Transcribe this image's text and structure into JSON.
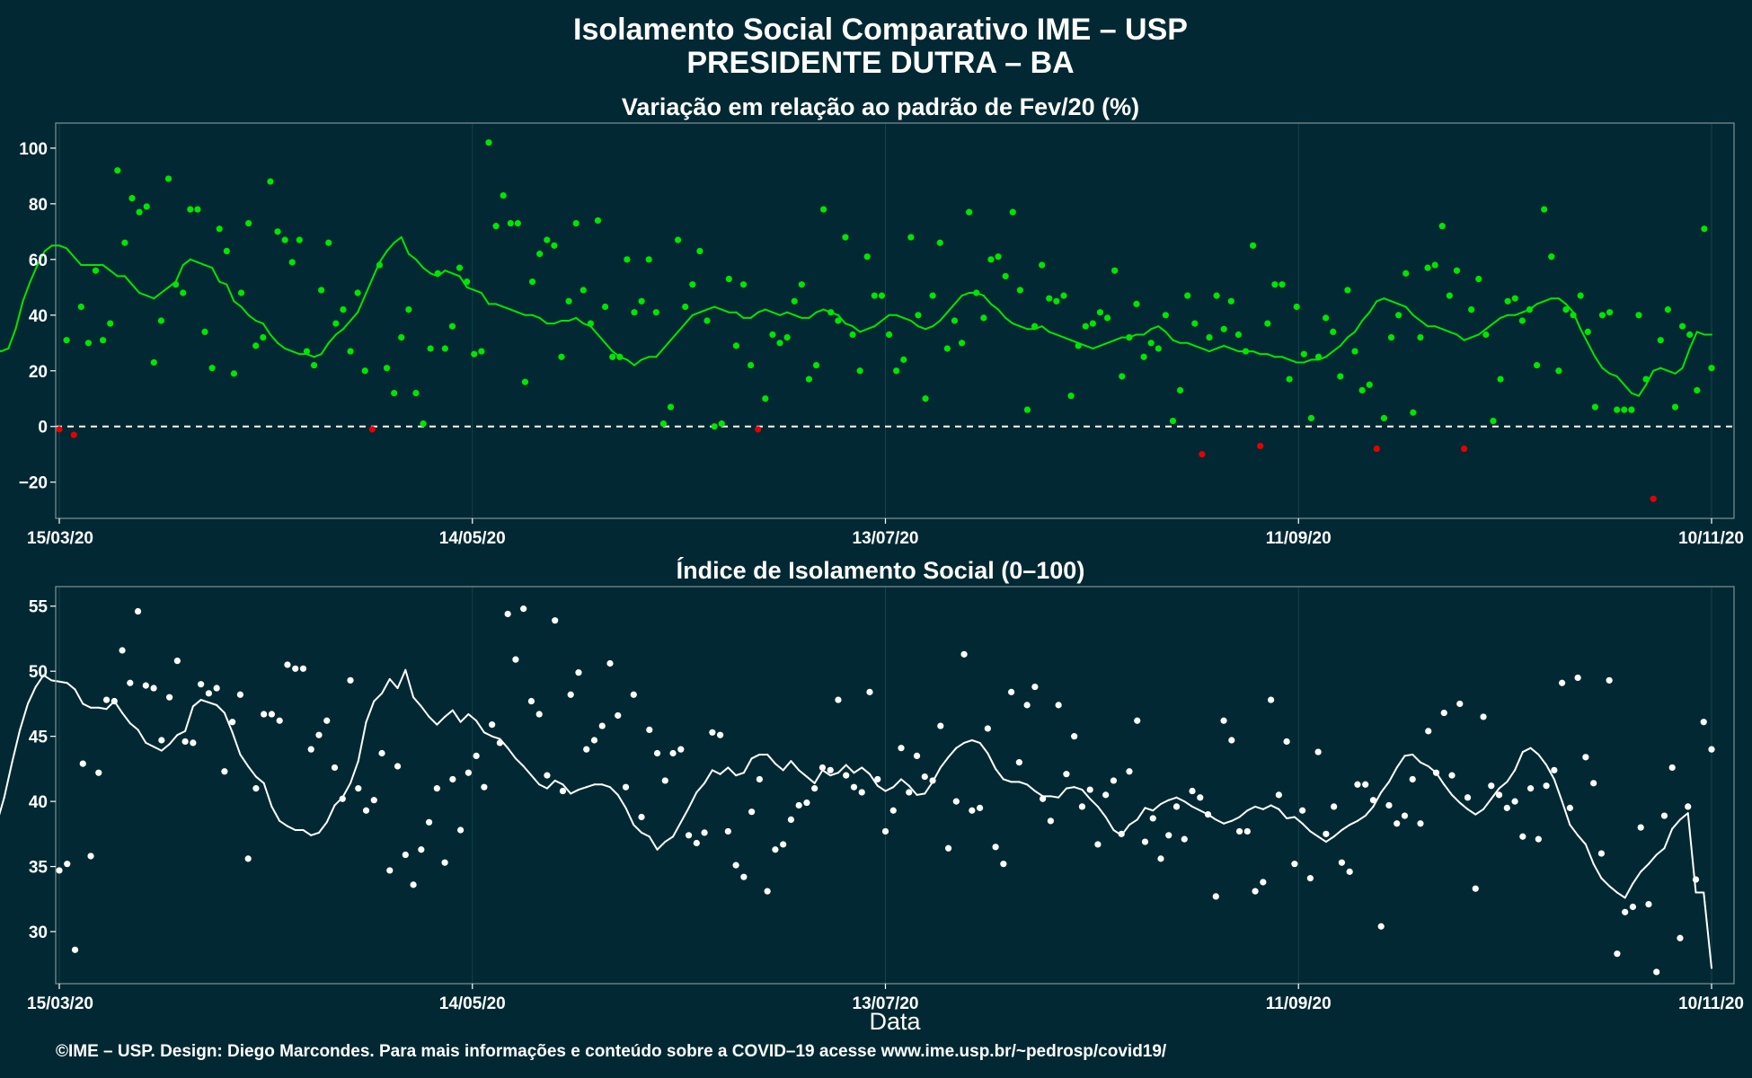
{
  "title_line1": "Isolamento Social Comparativo IME – USP",
  "title_line2": "PRESIDENTE DUTRA – BA",
  "x_title": "Data",
  "footer": "©IME – USP. Design: Diego Marcondes. Para mais informações e conteúdo sobre a COVID–19 acesse www.ime.usp.br/~pedrosp/covid19/",
  "colors": {
    "background": "#022933",
    "positive": "#00e600",
    "negative": "#e60000",
    "index": "#ffffff"
  },
  "chart_data": [
    {
      "type": "scatter",
      "title": "Variação em relação ao padrão de Fev/20 (%)",
      "x_ticks": [
        "15/03/20",
        "14/05/20",
        "13/07/20",
        "11/09/20",
        "10/11/20"
      ],
      "x_tick_days": [
        0,
        60,
        120,
        180,
        240
      ],
      "x_range_days": [
        0,
        240
      ],
      "ylim": [
        -33,
        109
      ],
      "y_ticks": [
        -20,
        0,
        20,
        40,
        60,
        80,
        100
      ],
      "reference_line": 0,
      "series": [
        {
          "kind": "points",
          "values": [
            -1,
            31,
            -3,
            43,
            30,
            56,
            31,
            37,
            92,
            66,
            82,
            77,
            79,
            23,
            38,
            89,
            51,
            48,
            78,
            78,
            34,
            21,
            71,
            63,
            19,
            48,
            73,
            29,
            32,
            88,
            70,
            67,
            59,
            67,
            27,
            22,
            49,
            66,
            37,
            42,
            27,
            48,
            20,
            -1,
            58,
            21,
            12,
            32,
            42,
            12,
            1,
            28,
            55,
            28,
            36,
            57,
            52,
            26,
            27,
            102,
            72,
            83,
            73,
            73,
            16,
            52,
            62,
            67,
            65,
            25,
            45,
            73,
            49,
            37,
            74,
            43,
            25,
            25,
            60,
            41,
            45,
            60,
            41,
            1,
            7,
            67,
            43,
            51,
            63,
            38,
            0,
            1,
            53,
            29,
            51,
            22,
            -1,
            10,
            33,
            30,
            32,
            45,
            51,
            17,
            22,
            78,
            41,
            38,
            68,
            33,
            20,
            61,
            47,
            47,
            33,
            20,
            24,
            68,
            40,
            10,
            47,
            66,
            28,
            38,
            30,
            77,
            48,
            39,
            60,
            61,
            54,
            77,
            49,
            6,
            36,
            58,
            46,
            45,
            47,
            11,
            29,
            36,
            37,
            41,
            39,
            56,
            18,
            32,
            44,
            25,
            30,
            28,
            40,
            2,
            13,
            47,
            37,
            -10,
            32,
            47,
            35,
            45,
            33,
            27,
            65,
            -7,
            37,
            51,
            51,
            17,
            43,
            26,
            3,
            25,
            39,
            34,
            18,
            49,
            27,
            13,
            15,
            -8,
            3,
            32,
            40,
            55,
            5,
            32,
            57,
            58,
            72,
            47,
            56,
            -8,
            42,
            53,
            33,
            2,
            17,
            45,
            46,
            38,
            42,
            22,
            78,
            61,
            20,
            42,
            40,
            47,
            34,
            7,
            40,
            41,
            6,
            6,
            6,
            40,
            17,
            -26,
            31,
            42,
            7,
            36,
            33,
            13,
            71,
            21
          ]
        },
        {
          "kind": "line",
          "name": "",
          "values": [
            27.5,
            27,
            28,
            27,
            28,
            35,
            45,
            52,
            58,
            63,
            65,
            65,
            64,
            61,
            58,
            58,
            58,
            58,
            56,
            54,
            54,
            51,
            48,
            47,
            46,
            48,
            50,
            52,
            58,
            60,
            59,
            58,
            57,
            52,
            51,
            45,
            43,
            40,
            38,
            37,
            33,
            30,
            28,
            27,
            26,
            26,
            25,
            26,
            30,
            33,
            35,
            38,
            41,
            47,
            53,
            59,
            63,
            66,
            68,
            62,
            60,
            57,
            55,
            54,
            56,
            55,
            54,
            50,
            49,
            48,
            44,
            44,
            43,
            42,
            41,
            40,
            40,
            39,
            37,
            37,
            38,
            38,
            39,
            37,
            36,
            33,
            30,
            27,
            25,
            24,
            22,
            24,
            25,
            25,
            28,
            31,
            34,
            37,
            40,
            41,
            42,
            43,
            42,
            41,
            41,
            39,
            39,
            41,
            42,
            41,
            40,
            41,
            40,
            39,
            39,
            41,
            42,
            41,
            40,
            37,
            36,
            34,
            35,
            36,
            38,
            40,
            40,
            39,
            38,
            36,
            35,
            36,
            38,
            41,
            44,
            47,
            48,
            48,
            47,
            44,
            42,
            39,
            37,
            36,
            35,
            35,
            36,
            34,
            33,
            32,
            31,
            30,
            29,
            28,
            29,
            30,
            31,
            32,
            32,
            33,
            33,
            35,
            36,
            34,
            31,
            30,
            30,
            29,
            28,
            27,
            28,
            29,
            28,
            27,
            27,
            27,
            26,
            26,
            25,
            25,
            24,
            23,
            23,
            24,
            24,
            25,
            27,
            29,
            32,
            34,
            38,
            41,
            45,
            46,
            45,
            44,
            43,
            40,
            38,
            36,
            36,
            35,
            34,
            33,
            31,
            32,
            33,
            35,
            37,
            39,
            40,
            40,
            41,
            42,
            44,
            45,
            46,
            46,
            44,
            41,
            35,
            30,
            25,
            21,
            19,
            18,
            15,
            12,
            11,
            15,
            20,
            21,
            20,
            19,
            21,
            28,
            34,
            33,
            33
          ]
        }
      ]
    },
    {
      "type": "scatter",
      "title": "Índice de Isolamento Social (0–100)",
      "x_ticks": [
        "15/03/20",
        "14/05/20",
        "13/07/20",
        "11/09/20",
        "10/11/20"
      ],
      "x_tick_days": [
        0,
        60,
        120,
        180,
        240
      ],
      "x_range_days": [
        0,
        240
      ],
      "ylim": [
        26,
        56.5
      ],
      "y_ticks": [
        30,
        35,
        40,
        45,
        50,
        55
      ],
      "series": [
        {
          "kind": "points",
          "values": [
            34.7,
            35.2,
            28.6,
            42.9,
            35.8,
            42.2,
            47.8,
            47.7,
            51.6,
            49.1,
            54.6,
            48.9,
            48.7,
            44.7,
            48.0,
            50.8,
            44.6,
            44.5,
            49.0,
            48.3,
            48.7,
            42.3,
            46.1,
            48.2,
            35.6,
            41.0,
            46.7,
            46.7,
            46.2,
            50.5,
            50.2,
            50.2,
            44.0,
            45.1,
            46.2,
            42.6,
            40.2,
            49.3,
            41.0,
            39.3,
            40.1,
            43.7,
            34.7,
            42.7,
            35.9,
            33.6,
            36.3,
            38.4,
            41.0,
            35.3,
            41.7,
            37.8,
            42.2,
            43.5,
            41.1,
            45.9,
            44.5,
            54.4,
            50.9,
            54.8,
            47.7,
            46.7,
            42.0,
            53.9,
            40.8,
            48.2,
            49.9,
            44.0,
            44.7,
            45.8,
            50.6,
            46.6,
            41.1,
            48.2,
            38.8,
            45.5,
            43.7,
            41.6,
            43.7,
            44.0,
            37.4,
            36.8,
            37.6,
            45.3,
            45.1,
            37.7,
            35.1,
            34.2,
            39.2,
            41.7,
            33.1,
            36.3,
            36.7,
            38.6,
            39.7,
            39.9,
            41.0,
            42.6,
            42.4,
            47.8,
            42.0,
            41.1,
            40.7,
            48.4,
            41.7,
            37.7,
            39.3,
            44.1,
            40.7,
            43.5,
            41.9,
            41.6,
            45.8,
            36.4,
            40.0,
            51.3,
            39.3,
            39.5,
            45.6,
            36.5,
            35.2,
            48.4,
            43.0,
            47.4,
            48.8,
            40.2,
            38.5,
            47.4,
            42.1,
            45.0,
            39.6,
            40.9,
            36.7,
            40.5,
            41.6,
            37.5,
            42.3,
            46.2,
            36.9,
            38.7,
            35.6,
            37.4,
            39.6,
            37.1,
            40.8,
            40.3,
            39.0,
            32.7,
            46.2,
            44.7,
            37.7,
            37.7,
            33.1,
            33.8,
            47.8,
            40.5,
            44.6,
            35.2,
            39.3,
            34.1,
            43.8,
            37.5,
            39.6,
            35.3,
            34.6,
            41.3,
            41.3,
            40.1,
            30.4,
            39.7,
            38.3,
            38.9,
            41.7,
            38.3,
            45.4,
            42.2,
            46.8,
            42.0,
            47.5,
            40.3,
            33.3,
            46.5,
            41.2,
            40.5,
            39.5,
            40.0,
            37.3,
            41.0,
            37.1,
            41.2,
            42.4,
            49.1,
            39.5,
            49.5,
            43.4,
            41.4,
            36.0,
            49.3,
            28.3,
            31.5,
            31.9,
            38.0,
            32.1,
            26.9,
            38.9,
            42.6,
            29.5,
            39.6,
            34.0,
            46.1,
            44.0
          ]
        },
        {
          "kind": "line",
          "name": "",
          "values": [
            38.2,
            40.3,
            43.0,
            45.5,
            47.5,
            48.8,
            49.7,
            49.3,
            49.2,
            49.1,
            48.6,
            47.5,
            47.2,
            47.2,
            47.1,
            47.7,
            46.8,
            46.0,
            45.5,
            44.5,
            44.2,
            43.9,
            44.4,
            45.1,
            45.4,
            47.3,
            47.8,
            47.6,
            47.4,
            46.8,
            45.3,
            43.6,
            42.7,
            41.9,
            41.4,
            39.6,
            38.5,
            38.1,
            37.8,
            37.8,
            37.4,
            37.6,
            38.4,
            39.7,
            40.3,
            41.4,
            43.1,
            46.1,
            47.7,
            48.3,
            49.4,
            48.7,
            50.1,
            48.0,
            47.3,
            46.5,
            45.9,
            46.5,
            47.0,
            46.1,
            46.7,
            46.2,
            45.3,
            45.0,
            44.8,
            44.1,
            43.3,
            42.7,
            42.0,
            41.3,
            41.0,
            41.6,
            41.3,
            40.6,
            40.9,
            41.1,
            41.3,
            41.3,
            41.1,
            40.5,
            39.5,
            38.2,
            37.6,
            37.3,
            36.3,
            36.9,
            37.3,
            38.4,
            39.5,
            40.7,
            41.4,
            42.4,
            42.1,
            42.6,
            42.0,
            42.2,
            43.3,
            43.6,
            43.6,
            42.9,
            42.4,
            43.1,
            42.4,
            41.9,
            41.4,
            42.4,
            42.0,
            42.2,
            42.8,
            42.2,
            42.6,
            42.1,
            41.2,
            40.8,
            41.1,
            41.7,
            41.2,
            40.5,
            40.6,
            41.5,
            42.6,
            43.4,
            44.1,
            44.5,
            44.7,
            44.5,
            43.7,
            42.5,
            41.7,
            41.5,
            41.5,
            41.3,
            40.8,
            40.4,
            40.4,
            40.3,
            41.0,
            41.1,
            40.9,
            40.2,
            39.6,
            38.8,
            37.8,
            37.4,
            38.2,
            38.6,
            39.5,
            39.3,
            39.8,
            40.1,
            40.3,
            40.0,
            39.6,
            39.3,
            39.0,
            38.6,
            38.3,
            38.5,
            38.8,
            39.3,
            39.6,
            39.4,
            39.7,
            39.4,
            38.7,
            38.8,
            38.3,
            37.7,
            37.3,
            36.9,
            37.3,
            37.8,
            38.2,
            38.5,
            38.9,
            39.6,
            40.7,
            41.5,
            42.6,
            43.5,
            43.6,
            43.0,
            42.7,
            42.2,
            41.3,
            40.5,
            39.9,
            39.4,
            39.0,
            39.4,
            40.2,
            41.0,
            41.5,
            42.4,
            43.8,
            44.1,
            43.6,
            42.8,
            41.7,
            40.0,
            38.2,
            37.4,
            36.7,
            35.2,
            34.1,
            33.5,
            33.0,
            32.6,
            33.7,
            34.6,
            35.2,
            35.9,
            36.4,
            37.9,
            38.6,
            39.1,
            33.0,
            33.0,
            27.2
          ]
        }
      ]
    }
  ]
}
